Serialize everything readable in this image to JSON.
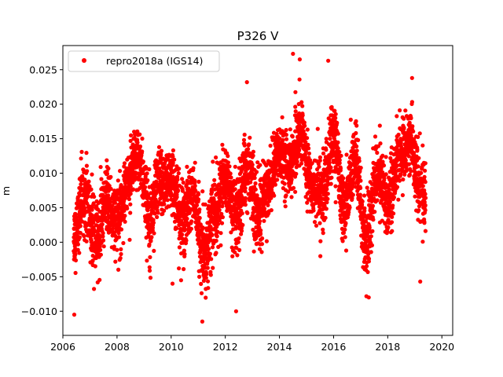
{
  "chart_data": {
    "type": "scatter",
    "title": "P326 V",
    "xlabel": "",
    "ylabel": "m",
    "xlim": [
      2006.0,
      2020.4
    ],
    "ylim": [
      -0.0135,
      0.0285
    ],
    "xticks": [
      2006,
      2008,
      2010,
      2012,
      2014,
      2016,
      2018,
      2020
    ],
    "xtick_labels": [
      "2006",
      "2008",
      "2010",
      "2012",
      "2014",
      "2016",
      "2018",
      "2020"
    ],
    "yticks": [
      -0.01,
      -0.005,
      0.0,
      0.005,
      0.01,
      0.015,
      0.02,
      0.025
    ],
    "ytick_labels": [
      "−0.010",
      "−0.005",
      "0.000",
      "0.005",
      "0.010",
      "0.015",
      "0.020",
      "0.025"
    ],
    "grid": false,
    "legend_position": "upper-left",
    "series": [
      {
        "name": "repro2018a (IGS14)",
        "color": "#ff0000",
        "marker": "circle",
        "x_range": [
          2006.4,
          2019.4
        ],
        "seasonal_envelope": {
          "x": [
            2006.4,
            2006.8,
            2007.2,
            2007.6,
            2008.0,
            2008.4,
            2008.8,
            2009.2,
            2009.6,
            2010.0,
            2010.4,
            2010.8,
            2011.2,
            2011.6,
            2012.0,
            2012.4,
            2012.8,
            2013.2,
            2013.6,
            2014.0,
            2014.4,
            2014.8,
            2015.2,
            2015.6,
            2016.0,
            2016.4,
            2016.8,
            2017.2,
            2017.6,
            2018.0,
            2018.4,
            2018.8,
            2019.2,
            2019.4
          ],
          "mean": [
            0.001,
            0.007,
            0.0,
            0.006,
            0.003,
            0.009,
            0.012,
            0.004,
            0.009,
            0.009,
            0.003,
            0.007,
            -0.002,
            0.004,
            0.009,
            0.003,
            0.011,
            0.004,
            0.008,
            0.013,
            0.011,
            0.016,
            0.008,
            0.007,
            0.015,
            0.005,
            0.012,
            0.0,
            0.01,
            0.006,
            0.012,
            0.015,
            0.008,
            0.006
          ],
          "spread": [
            0.004,
            0.005,
            0.005,
            0.004,
            0.005,
            0.004,
            0.004,
            0.005,
            0.004,
            0.004,
            0.005,
            0.004,
            0.005,
            0.005,
            0.004,
            0.005,
            0.005,
            0.005,
            0.004,
            0.004,
            0.004,
            0.004,
            0.004,
            0.005,
            0.005,
            0.004,
            0.004,
            0.005,
            0.004,
            0.005,
            0.004,
            0.004,
            0.005,
            0.005
          ]
        },
        "notable_points": [
          {
            "x": 2006.42,
            "y": -0.0105
          },
          {
            "x": 2010.05,
            "y": -0.006
          },
          {
            "x": 2011.15,
            "y": -0.0115
          },
          {
            "x": 2012.4,
            "y": -0.01
          },
          {
            "x": 2012.8,
            "y": 0.0232
          },
          {
            "x": 2014.5,
            "y": 0.0273
          },
          {
            "x": 2014.75,
            "y": 0.0265
          },
          {
            "x": 2015.8,
            "y": 0.0263
          },
          {
            "x": 2017.3,
            "y": -0.008
          },
          {
            "x": 2018.9,
            "y": 0.0238
          },
          {
            "x": 2019.2,
            "y": -0.0057
          }
        ]
      }
    ]
  }
}
